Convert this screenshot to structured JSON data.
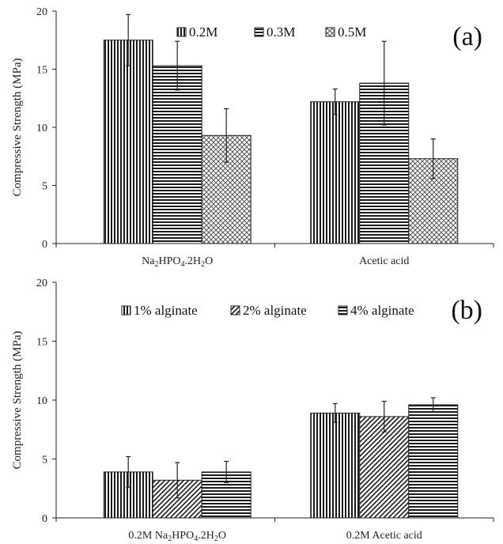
{
  "chart_data": [
    {
      "type": "bar",
      "panel_label": "(a)",
      "ylabel": "Compressive Strength (MPa)",
      "ylim": [
        0,
        20
      ],
      "yticks": [
        "0",
        "5",
        "10",
        "15",
        "20"
      ],
      "categories": [
        "Na2HPO4.2H2O",
        "Acetic acid"
      ],
      "category_parts": [
        [
          {
            "t": "Na",
            "sub": false
          },
          {
            "t": "2",
            "sub": true
          },
          {
            "t": "HPO",
            "sub": false
          },
          {
            "t": "4",
            "sub": true
          },
          {
            "t": ".2H",
            "sub": false
          },
          {
            "t": "2",
            "sub": true
          },
          {
            "t": "O",
            "sub": false
          }
        ],
        [
          {
            "t": "Acetic acid",
            "sub": false
          }
        ]
      ],
      "legend_position": "top",
      "series": [
        {
          "name": "0.2M",
          "pattern": "vertical-lines",
          "values": [
            17.5,
            12.2
          ],
          "errors": [
            2.2,
            1.1
          ]
        },
        {
          "name": "0.3M",
          "pattern": "horizontal-lines",
          "values": [
            15.3,
            13.8
          ],
          "errors": [
            2.1,
            3.6
          ]
        },
        {
          "name": "0.5M",
          "pattern": "crosshatch",
          "values": [
            9.3,
            7.3
          ],
          "errors": [
            2.3,
            1.7
          ]
        }
      ]
    },
    {
      "type": "bar",
      "panel_label": "(b)",
      "ylabel": "Compressive Strength (MPa)",
      "ylim": [
        0,
        20
      ],
      "yticks": [
        "0",
        "5",
        "10",
        "15",
        "20"
      ],
      "categories": [
        "0.2M Na2HPO4.2H2O",
        "0.2M Acetic acid"
      ],
      "category_parts": [
        [
          {
            "t": "0.2M Na",
            "sub": false
          },
          {
            "t": "2",
            "sub": true
          },
          {
            "t": "HPO",
            "sub": false
          },
          {
            "t": "4",
            "sub": true
          },
          {
            "t": ".2H",
            "sub": false
          },
          {
            "t": "2",
            "sub": true
          },
          {
            "t": "O",
            "sub": false
          }
        ],
        [
          {
            "t": "0.2M Acetic acid",
            "sub": false
          }
        ]
      ],
      "legend_position": "top",
      "series": [
        {
          "name": "1% alginate",
          "pattern": "vertical-lines",
          "values": [
            3.9,
            8.9
          ],
          "errors": [
            1.3,
            0.8
          ]
        },
        {
          "name": "2% alginate",
          "pattern": "diagonal-lines",
          "values": [
            3.2,
            8.6
          ],
          "errors": [
            1.5,
            1.3
          ]
        },
        {
          "name": "4% alginate",
          "pattern": "horizontal-lines",
          "values": [
            3.9,
            9.6
          ],
          "errors": [
            0.9,
            0.6
          ]
        }
      ]
    }
  ]
}
